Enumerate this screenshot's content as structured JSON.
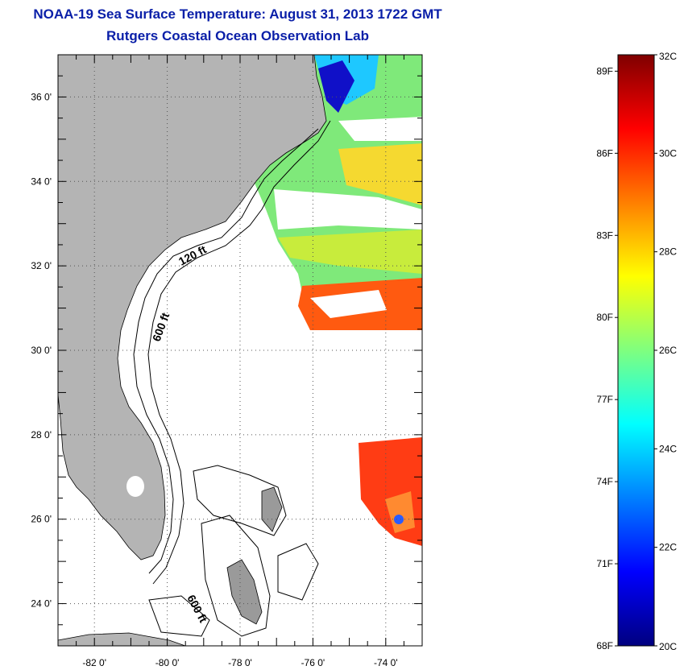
{
  "title": "NOAA-19 Sea Surface Temperature:  August 31, 2013 1722 GMT",
  "subtitle": "Rutgers Coastal Ocean Observation Lab",
  "map": {
    "lon_range": [
      -83,
      -73
    ],
    "lat_range": [
      23,
      37
    ],
    "lon_ticks": [
      {
        "value": -82,
        "label": "-82 0'"
      },
      {
        "value": -80,
        "label": "-80 0'"
      },
      {
        "value": -78,
        "label": "-78 0'"
      },
      {
        "value": -76,
        "label": "-76 0'"
      },
      {
        "value": -74,
        "label": "-74 0'"
      }
    ],
    "lat_ticks": [
      {
        "value": 36,
        "label": "36 0'"
      },
      {
        "value": 34,
        "label": "34 0'"
      },
      {
        "value": 32,
        "label": "32 0'"
      },
      {
        "value": 30,
        "label": "30 0'"
      },
      {
        "value": 28,
        "label": "28 0'"
      },
      {
        "value": 26,
        "label": "26 0'"
      },
      {
        "value": 24,
        "label": "24 0'"
      }
    ],
    "contours": [
      {
        "label": "120 ft"
      },
      {
        "label": "600 ft"
      },
      {
        "label": "600 ft"
      }
    ],
    "land_color": "#b4b4b4",
    "grid": true
  },
  "colorbar": {
    "min_c": 20,
    "max_c": 32,
    "celsius_ticks": [
      {
        "value": 32,
        "label": "32C"
      },
      {
        "value": 30,
        "label": "30C"
      },
      {
        "value": 28,
        "label": "28C"
      },
      {
        "value": 26,
        "label": "26C"
      },
      {
        "value": 24,
        "label": "24C"
      },
      {
        "value": 22,
        "label": "22C"
      },
      {
        "value": 20,
        "label": "20C"
      }
    ],
    "fahrenheit_ticks": [
      {
        "value": 89,
        "label": "89F"
      },
      {
        "value": 86,
        "label": "86F"
      },
      {
        "value": 83,
        "label": "83F"
      },
      {
        "value": 80,
        "label": "80F"
      },
      {
        "value": 77,
        "label": "77F"
      },
      {
        "value": 74,
        "label": "74F"
      },
      {
        "value": 71,
        "label": "71F"
      },
      {
        "value": 68,
        "label": "68F"
      }
    ],
    "colors": [
      "#00007f",
      "#0000ff",
      "#007fff",
      "#00ffff",
      "#7fff7f",
      "#ffff00",
      "#ff7f00",
      "#ff0000",
      "#7f0000"
    ]
  }
}
